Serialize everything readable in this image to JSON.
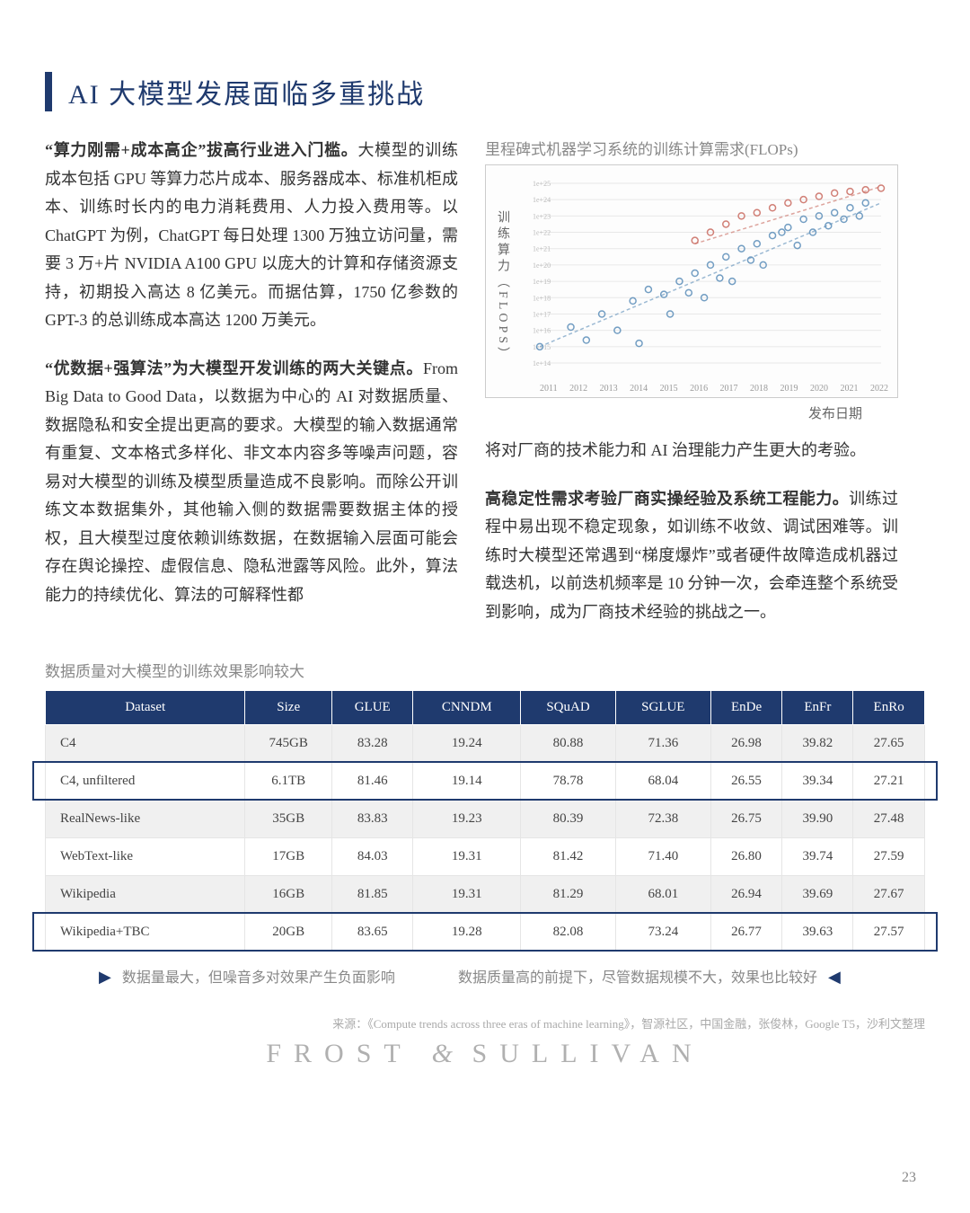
{
  "title": "AI 大模型发展面临多重挑战",
  "left": {
    "p1_lead": "“算力刚需+成本高企”拔高行业进入门槛。",
    "p1_body": "大模型的训练成本包括 GPU 等算力芯片成本、服务器成本、标准机柜成本、训练时长内的电力消耗费用、人力投入费用等。以 ChatGPT 为例，ChatGPT 每日处理 1300 万独立访问量，需要 3 万+片 NVIDIA A100 GPU 以庞大的计算和存储资源支持，初期投入高达 8 亿美元。而据估算，1750 亿参数的 GPT-3 的总训练成本高达 1200 万美元。",
    "p2_lead": "“优数据+强算法”为大模型开发训练的两大关键点。",
    "p2_body": "From Big Data to Good Data，以数据为中心的 AI 对数据质量、数据隐私和安全提出更高的要求。大模型的输入数据通常有重复、文本格式多样化、非文本内容多等噪声问题，容易对大模型的训练及模型质量造成不良影响。而除公开训练文本数据集外，其他输入侧的数据需要数据主体的授权，且大模型过度依赖训练数据，在数据输入层面可能会存在舆论操控、虚假信息、隐私泄露等风险。此外，算法能力的持续优化、算法的可解释性都"
  },
  "right": {
    "chart_title": "里程碑式机器学习系统的训练计算需求(FLOPs)",
    "chart_ylabel": "训练算力（FLOPS）",
    "chart_xlabel": "发布日期",
    "p3_body": "将对厂商的技术能力和 AI 治理能力产生更大的考验。",
    "p4_lead": "高稳定性需求考验厂商实操经验及系统工程能力。",
    "p4_body": "训练过程中易出现不稳定现象，如训练不收敛、调试困难等。训练时大模型还常遇到“梯度爆炸”或者硬件故障造成机器过载迭机，以前迭机频率是 10 分钟一次，会牵连整个系统受到影响，成为厂商技术经验的挑战之一。"
  },
  "chart": {
    "type": "scatter",
    "xlim": [
      2011,
      2022
    ],
    "ylim_exp": [
      14,
      25
    ],
    "xticks": [
      2011,
      2012,
      2013,
      2014,
      2015,
      2016,
      2017,
      2018,
      2019,
      2020,
      2021,
      2022
    ],
    "grid_color": "#e8e8e8",
    "background": "#fdfdfd",
    "series": {
      "blue": {
        "color": "#5b8db8",
        "points": [
          [
            2011,
            15.0
          ],
          [
            2012,
            16.2
          ],
          [
            2012.5,
            15.4
          ],
          [
            2013,
            17.0
          ],
          [
            2013.5,
            16.0
          ],
          [
            2014,
            17.8
          ],
          [
            2014.2,
            15.2
          ],
          [
            2014.5,
            18.5
          ],
          [
            2015,
            18.2
          ],
          [
            2015.2,
            17.0
          ],
          [
            2015.5,
            19.0
          ],
          [
            2015.8,
            18.3
          ],
          [
            2016,
            19.5
          ],
          [
            2016.3,
            18.0
          ],
          [
            2016.5,
            20.0
          ],
          [
            2016.8,
            19.2
          ],
          [
            2017,
            20.5
          ],
          [
            2017.2,
            19.0
          ],
          [
            2017.5,
            21.0
          ],
          [
            2017.8,
            20.3
          ],
          [
            2018,
            21.3
          ],
          [
            2018.2,
            20.0
          ],
          [
            2018.5,
            21.8
          ],
          [
            2018.8,
            22.0
          ],
          [
            2019,
            22.3
          ],
          [
            2019.3,
            21.2
          ],
          [
            2019.5,
            22.8
          ],
          [
            2019.8,
            22.0
          ],
          [
            2020,
            23.0
          ],
          [
            2020.3,
            22.4
          ],
          [
            2020.5,
            23.2
          ],
          [
            2020.8,
            22.8
          ],
          [
            2021,
            23.5
          ],
          [
            2021.3,
            23.0
          ],
          [
            2021.5,
            23.8
          ]
        ]
      },
      "red": {
        "color": "#c96a5f",
        "points": [
          [
            2016,
            21.5
          ],
          [
            2016.5,
            22.0
          ],
          [
            2017,
            22.5
          ],
          [
            2017.5,
            23.0
          ],
          [
            2018,
            23.2
          ],
          [
            2018.5,
            23.5
          ],
          [
            2019,
            23.8
          ],
          [
            2019.5,
            24.0
          ],
          [
            2020,
            24.2
          ],
          [
            2020.5,
            24.4
          ],
          [
            2021,
            24.5
          ],
          [
            2021.5,
            24.6
          ],
          [
            2022,
            24.7
          ]
        ]
      }
    },
    "trend_lines": [
      {
        "color": "#5b8db8",
        "from": [
          2011,
          15.0
        ],
        "to": [
          2022,
          23.8
        ]
      },
      {
        "color": "#c96a5f",
        "from": [
          2016,
          21.3
        ],
        "to": [
          2022,
          24.8
        ]
      }
    ]
  },
  "table": {
    "caption": "数据质量对大模型的训练效果影响较大",
    "columns": [
      "Dataset",
      "Size",
      "GLUE",
      "CNNDM",
      "SQuAD",
      "SGLUE",
      "EnDe",
      "EnFr",
      "EnRo"
    ],
    "rows": [
      [
        "C4",
        "745GB",
        "83.28",
        "19.24",
        "80.88",
        "71.36",
        "26.98",
        "39.82",
        "27.65"
      ],
      [
        "C4, unfiltered",
        "6.1TB",
        "81.46",
        "19.14",
        "78.78",
        "68.04",
        "26.55",
        "39.34",
        "27.21"
      ],
      [
        "RealNews-like",
        "35GB",
        "83.83",
        "19.23",
        "80.39",
        "72.38",
        "26.75",
        "39.90",
        "27.48"
      ],
      [
        "WebText-like",
        "17GB",
        "84.03",
        "19.31",
        "81.42",
        "71.40",
        "26.80",
        "39.74",
        "27.59"
      ],
      [
        "Wikipedia",
        "16GB",
        "81.85",
        "19.31",
        "81.29",
        "68.01",
        "26.94",
        "39.69",
        "27.67"
      ],
      [
        "Wikipedia+TBC",
        "20GB",
        "83.65",
        "19.28",
        "82.08",
        "73.24",
        "26.77",
        "39.63",
        "27.57"
      ]
    ],
    "header_bg": "#1f3a6e",
    "header_fg": "#ffffff",
    "alt_bg": "#f0f0f0",
    "highlight_rows": [
      1,
      5
    ],
    "highlight_color": "#1f3a6e"
  },
  "annotations": {
    "left": "数据量最大，但噪音多对效果产生负面影响",
    "right": "数据质量高的前提下，尽管数据规模不大，效果也比较好"
  },
  "source": "来源：《Compute trends across three eras of machine learning》，智源社区，中国金融，张俊林，Google T5，沙利文整理",
  "brand": {
    "left": "FROST",
    "amp": "&",
    "right": "SULLIVAN"
  },
  "page": "23"
}
